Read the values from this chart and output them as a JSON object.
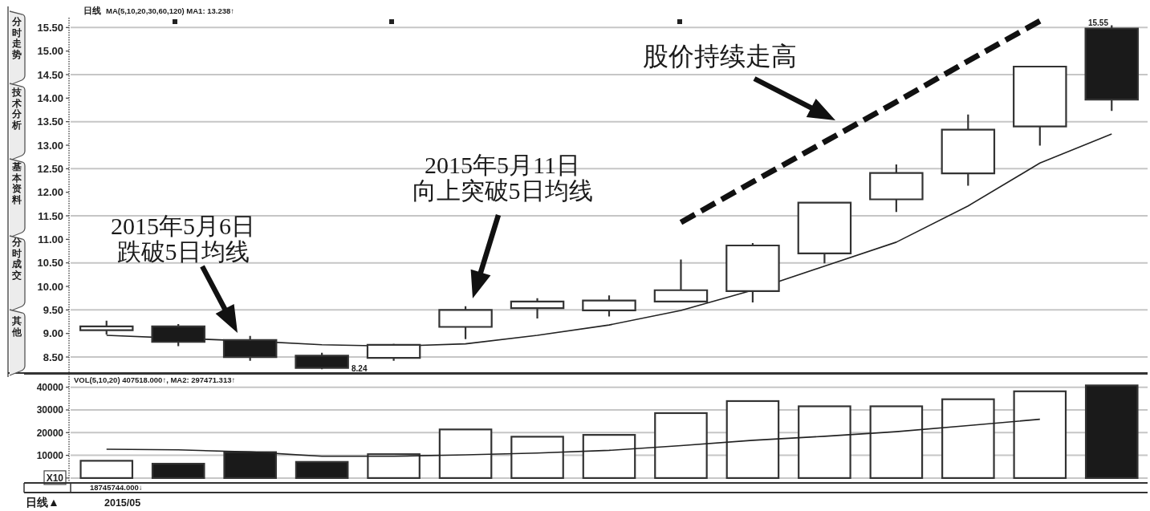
{
  "chart_data": [
    {
      "type": "candlestick",
      "title": "日线",
      "annotations": [
        "MA(5,10,20,30,60,120) MA1: 13.238↑",
        "2015年5月6日",
        "跌破5日均线",
        "2015年5月11日",
        "向上突破5日均线",
        "股价持续走高",
        "8.24",
        "15.55",
        "分时走势",
        "技术分析",
        "基本资料",
        "分时成交",
        "其他"
      ],
      "categories": [
        null,
        null,
        null,
        null,
        null,
        null,
        null,
        null,
        null,
        null,
        null,
        null,
        null,
        null,
        null
      ],
      "ohlc": [
        [
          9.07,
          9.27,
          8.98,
          9.15
        ],
        [
          9.15,
          9.2,
          8.73,
          8.82
        ],
        [
          8.86,
          8.95,
          8.42,
          8.5
        ],
        [
          8.53,
          8.59,
          8.24,
          8.27
        ],
        [
          8.48,
          8.78,
          8.42,
          8.76
        ],
        [
          9.14,
          9.58,
          8.88,
          9.5
        ],
        [
          9.54,
          9.75,
          9.32,
          9.68
        ],
        [
          9.49,
          9.81,
          9.36,
          9.7
        ],
        [
          9.68,
          10.57,
          9.66,
          9.92
        ],
        [
          9.9,
          10.92,
          9.66,
          10.87
        ],
        [
          10.7,
          11.8,
          10.49,
          11.78
        ],
        [
          11.85,
          12.59,
          11.58,
          12.41
        ],
        [
          12.4,
          13.65,
          12.14,
          13.33
        ],
        [
          13.4,
          14.68,
          12.99,
          14.67
        ],
        [
          15.48,
          15.55,
          13.73,
          13.97
        ]
      ],
      "colors": [
        "#ffffff",
        "#1a1a1a",
        "#1a1a1a",
        "#1a1a1a",
        "#ffffff",
        "#ffffff",
        "#ffffff",
        "#ffffff",
        "#ffffff",
        "#ffffff",
        "#ffffff",
        "#ffffff",
        "#ffffff",
        "#ffffff",
        "#1a1a1a"
      ],
      "series": [
        {
          "type": "line",
          "color": "#222222",
          "values": [
            8.96,
            8.9,
            8.84,
            8.76,
            8.73,
            8.78,
            8.96,
            9.18,
            9.49,
            9.92,
            10.43,
            10.94,
            11.71,
            12.62,
            13.24
          ]
        },
        {
          "type": "line",
          "color": "#111111",
          "line_style": "dashed",
          "values": [
            null,
            null,
            null,
            null,
            null,
            null,
            null,
            null,
            11.36,
            12.22,
            13.07,
            13.92,
            14.79,
            15.64,
            null
          ]
        }
      ],
      "ylim": [
        8.16,
        15.71
      ],
      "yticks": [
        {
          "value": 8.5,
          "label": "8.50"
        },
        {
          "value": 9,
          "label": "9.00"
        },
        {
          "value": 9.5,
          "label": "9.50"
        },
        {
          "value": 10,
          "label": "10.00"
        },
        {
          "value": 10.5,
          "label": "10.50"
        },
        {
          "value": 11,
          "label": "11.00"
        },
        {
          "value": 11.5,
          "label": "11.50"
        },
        {
          "value": 12,
          "label": "12.00"
        },
        {
          "value": 12.5,
          "label": "12.50"
        },
        {
          "value": 13,
          "label": "13.00"
        },
        {
          "value": 13.5,
          "label": "13.50"
        },
        {
          "value": 14,
          "label": "14.00"
        },
        {
          "value": 14.5,
          "label": "14.50"
        },
        {
          "value": 15,
          "label": "15.00"
        },
        {
          "value": 15.5,
          "label": "15.50"
        }
      ],
      "grid": "y",
      "tick_labels": "y"
    },
    {
      "type": "bar",
      "annotations": [
        "VOL(5,10,20) 407518.000↑, MA2: 297471.313↑",
        "18745744.000↓",
        "日线▲",
        "2015/05"
      ],
      "categories": [
        null,
        null,
        null,
        null,
        null,
        null,
        null,
        null,
        null,
        null,
        null,
        null,
        null,
        null,
        null
      ],
      "values": [
        7600,
        6300,
        11400,
        7100,
        10500,
        21400,
        18200,
        19000,
        28600,
        33900,
        31600,
        31600,
        34700,
        38200,
        40800
      ],
      "colors": [
        "#ffffff",
        "#1a1a1a",
        "#1a1a1a",
        "#1a1a1a",
        "#ffffff",
        "#ffffff",
        "#ffffff",
        "#ffffff",
        "#ffffff",
        "#ffffff",
        "#ffffff",
        "#ffffff",
        "#ffffff",
        "#ffffff",
        "#1a1a1a"
      ],
      "series": [
        {
          "type": "line",
          "color": "#222222",
          "values": [
            12700,
            12400,
            11500,
            9600,
            9600,
            10200,
            11000,
            12200,
            14300,
            16600,
            18400,
            20400,
            23100,
            25900,
            null
          ]
        }
      ],
      "ylim": [
        -1800,
        45900
      ],
      "yticks": [
        {
          "value": 0,
          "label": "X10"
        },
        10000,
        20000,
        30000,
        40000
      ],
      "grid": "y",
      "tick_labels": "y"
    }
  ]
}
